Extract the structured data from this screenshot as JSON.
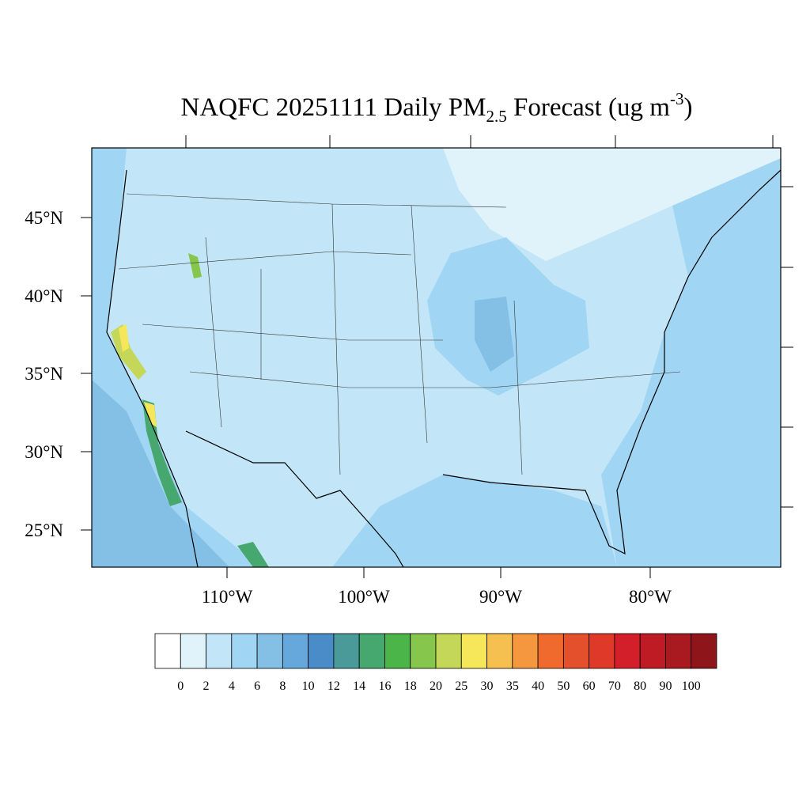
{
  "header": {
    "title_main": "NAQFC 20251111 Daily PM",
    "title_sub": "2.5",
    "title_mid": " Forecast (ug m",
    "title_sup": "-3",
    "title_end": ")"
  },
  "map": {
    "lat_labels": [
      "45°N",
      "40°N",
      "35°N",
      "30°N",
      "25°N"
    ],
    "lon_labels": [
      "110°W",
      "100°W",
      "90°W",
      "80°W"
    ]
  },
  "colorbar": {
    "levels": [
      0,
      2,
      4,
      6,
      8,
      10,
      12,
      14,
      16,
      18,
      20,
      25,
      30,
      35,
      40,
      50,
      60,
      70,
      80,
      90,
      100
    ],
    "colors": [
      "#ffffff",
      "#e0f3fb",
      "#c2e6f7",
      "#a0d6f3",
      "#84c0e6",
      "#66a8db",
      "#4a8cc8",
      "#4b9a9a",
      "#47a86f",
      "#4cb54a",
      "#86c64d",
      "#c4d759",
      "#f6e65a",
      "#f6c050",
      "#f4973e",
      "#f06a2e",
      "#e5502c",
      "#df392a",
      "#d31f2a",
      "#be1b25",
      "#a81a1f",
      "#8e1519"
    ]
  }
}
